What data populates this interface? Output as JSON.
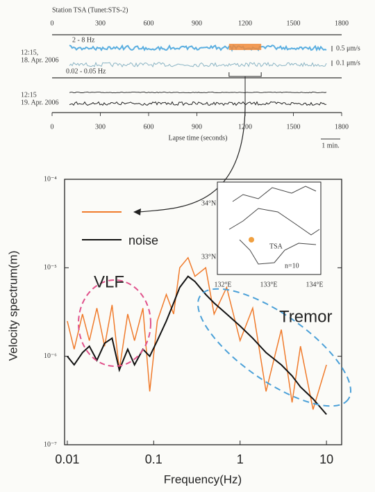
{
  "chart_data": [
    {
      "type": "waveform",
      "title": "Station TSA (Tunet:STS-2)",
      "xlim": [
        0,
        1800
      ],
      "xticks": [
        0,
        300,
        600,
        900,
        1200,
        1500,
        1800
      ],
      "xlabel": "Lapse time (seconds)",
      "scale_bar": "1 min.",
      "highlight": [
        1100,
        1300
      ],
      "days": [
        {
          "time": "12:15,",
          "date": "18. Apr. 2006",
          "traces": [
            {
              "band": "2 - 8 Hz",
              "amplitude": "0.5 μm/s",
              "color": "#5aaee0"
            },
            {
              "band": "0.02 - 0.05 Hz",
              "amplitude": "0.1 μm/s",
              "color": "#8ab4c4"
            }
          ]
        },
        {
          "time": "12:15",
          "date": "19. Apr. 2006",
          "traces": [
            {
              "color": "#333333"
            },
            {
              "color": "#222222"
            }
          ]
        }
      ]
    },
    {
      "type": "line",
      "xscale": "log",
      "yscale": "log",
      "ylabel": "Velocity spectrum(m)",
      "xlabel": "Frequency(Hz)",
      "xlim": [
        0.0093,
        15
      ],
      "ylim": [
        1e-07,
        0.0001
      ],
      "xticks": [
        0.01,
        0.1,
        1,
        10
      ],
      "yticks": [
        {
          "value": 1e-07,
          "label": "10⁻⁷"
        },
        {
          "value": 1e-06,
          "label": "10⁻⁶"
        },
        {
          "value": 1e-05,
          "label": "10⁻⁵"
        },
        {
          "value": 0.0001,
          "label": "10⁻⁴"
        }
      ],
      "x": [
        0.01,
        0.012,
        0.015,
        0.018,
        0.022,
        0.027,
        0.033,
        0.04,
        0.05,
        0.06,
        0.075,
        0.09,
        0.11,
        0.14,
        0.17,
        0.2,
        0.25,
        0.3,
        0.4,
        0.5,
        0.7,
        1,
        1.4,
        2,
        3,
        4,
        5,
        7,
        10
      ],
      "series": [
        {
          "color": "#f07a2a",
          "values": [
            2.5e-06,
            1.2e-06,
            3e-06,
            1.5e-06,
            3.5e-06,
            1.3e-06,
            3.8e-06,
            7e-07,
            3e-06,
            1.5e-06,
            3.5e-06,
            4e-07,
            2.5e-06,
            5e-06,
            3e-06,
            1e-05,
            1.3e-05,
            8e-06,
            1e-05,
            3e-06,
            6e-06,
            1.5e-06,
            3.5e-06,
            4e-07,
            2e-06,
            3e-07,
            1.3e-06,
            2.5e-07,
            8e-07
          ]
        },
        {
          "name": "noise",
          "color": "#111111",
          "values": [
            1e-06,
            8e-07,
            1.1e-06,
            1.3e-06,
            9e-07,
            1.4e-06,
            1.6e-06,
            7e-07,
            1.2e-06,
            8e-07,
            1.2e-06,
            1e-06,
            1.5e-06,
            2.5e-06,
            4e-06,
            6e-06,
            8e-06,
            7e-06,
            5e-06,
            4e-06,
            3e-06,
            2.2e-06,
            1.6e-06,
            1.1e-06,
            8e-07,
            6e-07,
            4.5e-07,
            3.3e-07,
            2.2e-07
          ]
        }
      ],
      "annotations": [
        "VLF",
        "Tremor"
      ],
      "inset": {
        "lat": [
          "34°N",
          "33°N"
        ],
        "lon": [
          "132°E",
          "133°E",
          "134°E"
        ],
        "station": "TSA",
        "count": "n=10"
      }
    }
  ]
}
